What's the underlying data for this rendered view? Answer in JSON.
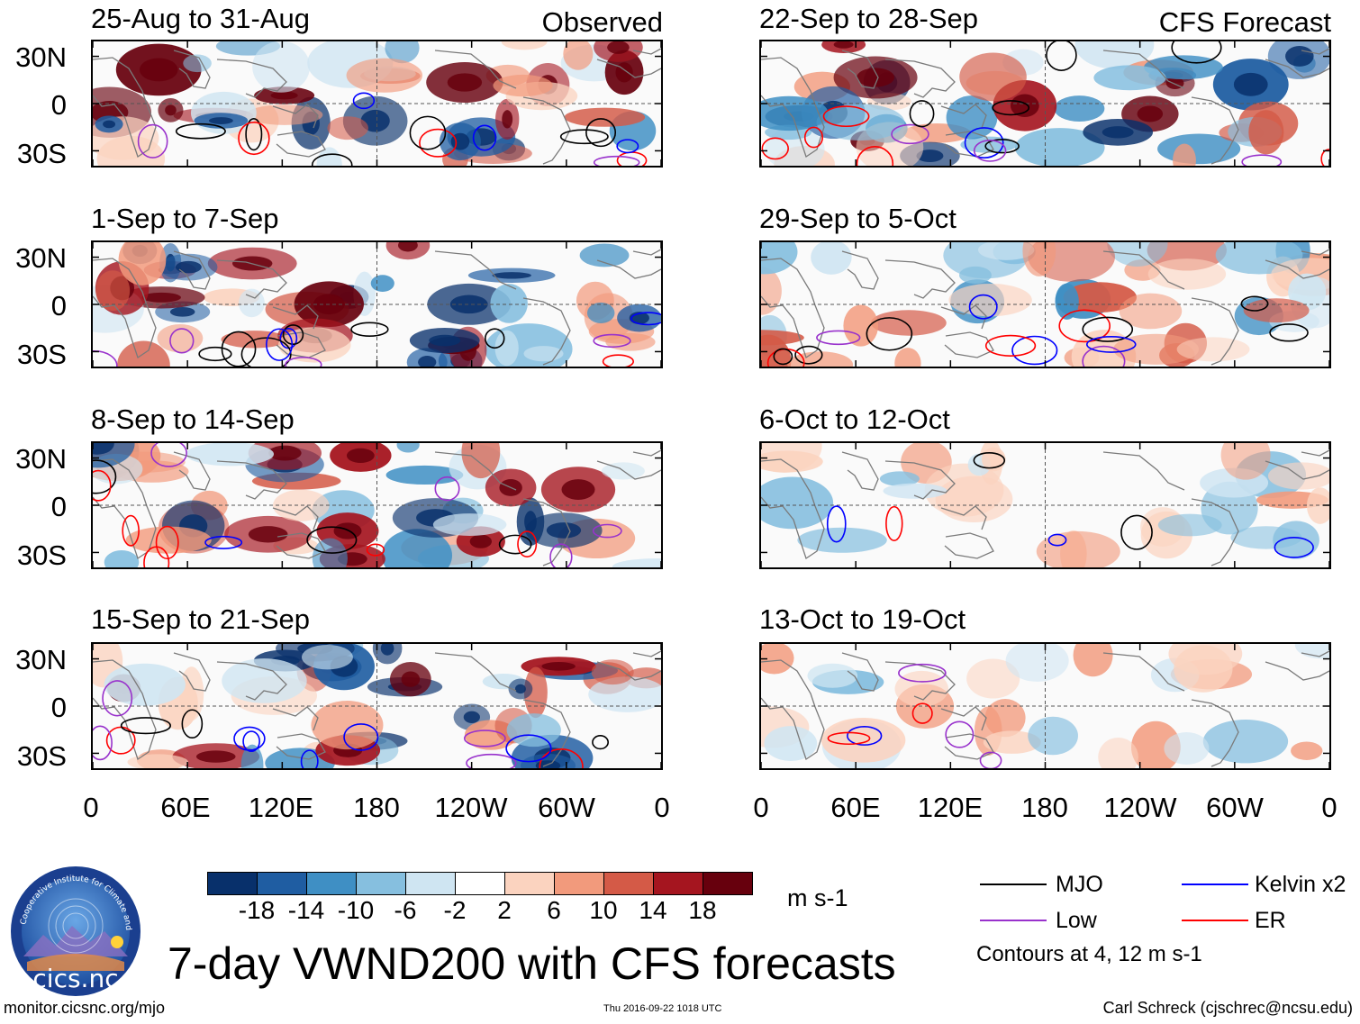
{
  "header": {
    "observed_label": "Observed",
    "forecast_label": "CFS Forecast"
  },
  "panels_left": [
    {
      "period": "25-Aug to 31-Aug",
      "intensity": "strong",
      "seed": 3
    },
    {
      "period": "1-Sep to 7-Sep",
      "intensity": "strong",
      "seed": 7
    },
    {
      "period": "8-Sep to 14-Sep",
      "intensity": "strong",
      "seed": 11
    },
    {
      "period": "15-Sep to 21-Sep",
      "intensity": "strong",
      "seed": 17
    }
  ],
  "panels_right": [
    {
      "period": "22-Sep to 28-Sep",
      "intensity": "strong",
      "seed": 23
    },
    {
      "period": "29-Sep to 5-Oct",
      "intensity": "medium",
      "seed": 29
    },
    {
      "period": "6-Oct to 12-Oct",
      "intensity": "weak",
      "seed": 31
    },
    {
      "period": "13-Oct to 19-Oct",
      "intensity": "weak",
      "seed": 37
    }
  ],
  "y_axis_labels": [
    "30N",
    "0",
    "30S"
  ],
  "x_axis_labels": [
    "0",
    "60E",
    "120E",
    "180",
    "120W",
    "60W",
    "0"
  ],
  "colorbar": {
    "colors": [
      "#08306b",
      "#1f5da2",
      "#3f8fc4",
      "#86bfdf",
      "#cfe5f2",
      "#ffffff",
      "#fbd3bf",
      "#f29a7c",
      "#d45a47",
      "#a5151f",
      "#67000d"
    ],
    "labels": [
      "-18",
      "-14",
      "-10",
      "-6",
      "-2",
      "2",
      "6",
      "10",
      "14",
      "18"
    ],
    "units": "m s-1"
  },
  "legend": {
    "items": [
      {
        "label": "MJO",
        "color": "#000000"
      },
      {
        "label": "Kelvin x2",
        "color": "#0000ff"
      },
      {
        "label": "Low",
        "color": "#9932cc"
      },
      {
        "label": "ER",
        "color": "#ff0000"
      }
    ],
    "note": "Contours at 4, 12 m s-1"
  },
  "title": "7-day VWND200 with CFS forecasts",
  "logo_text": "cics.nc",
  "logo_ring_text": "Cooperative Institute for Climate and Satellites",
  "footer": {
    "url": "monitor.cicsnc.org/mjo",
    "timestamp": "Thu 2016-09-22 1018 UTC",
    "author": "Carl Schreck (cjschrec@ncsu.edu)"
  }
}
